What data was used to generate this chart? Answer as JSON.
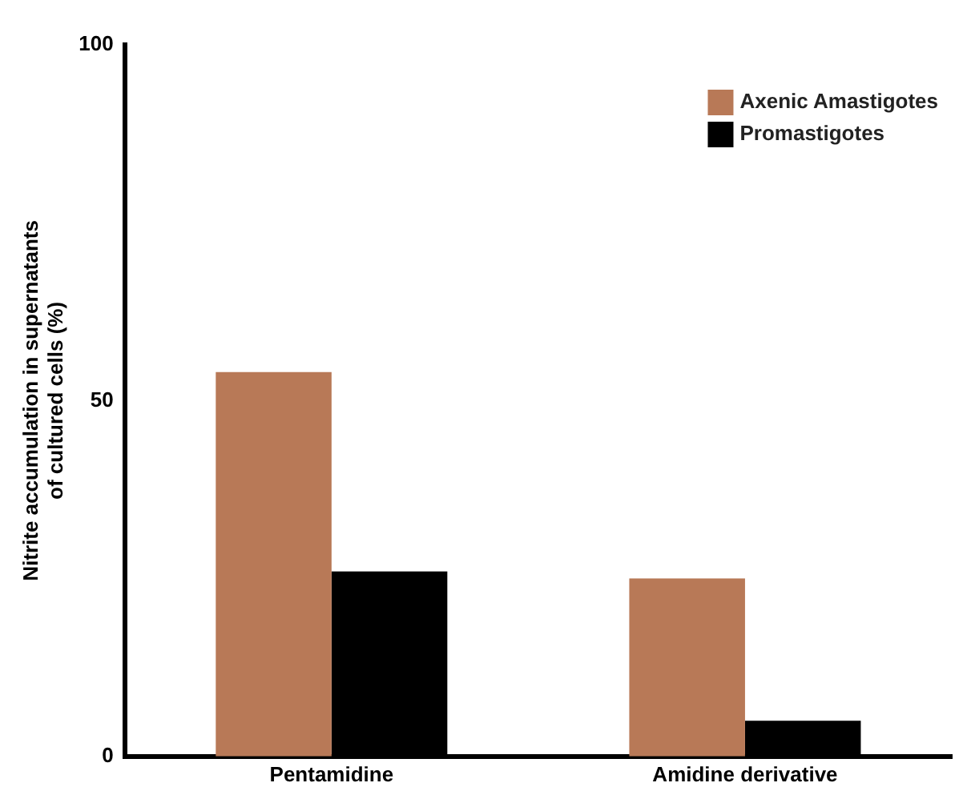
{
  "chart_data": {
    "type": "bar",
    "ylabel": "Nitrite accumulation in supernatants\nof cultured cells (%)",
    "categories": [
      "Pentamidine",
      "Amidine derivative"
    ],
    "series": [
      {
        "name": "Axenic Amastigotes",
        "color": "#b87957",
        "values": [
          54,
          25
        ]
      },
      {
        "name": "Promastigotes",
        "color": "#000000",
        "values": [
          26,
          5
        ]
      }
    ],
    "ylim": [
      0,
      100
    ],
    "yticks": [
      0,
      50,
      100
    ],
    "grid": false,
    "legend": "top right"
  }
}
